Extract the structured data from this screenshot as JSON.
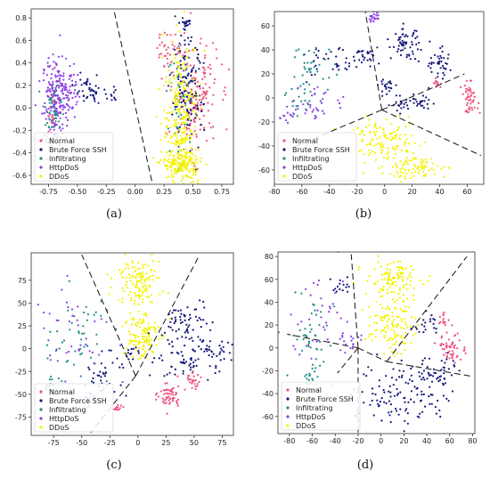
{
  "colors": {
    "Normal": "#f0527e",
    "Brute Force SSH": "#14187a",
    "Infiltrating": "#1c8c88",
    "HttpDoS": "#8e3ee6",
    "DDoS": "#f3f300"
  },
  "chart_data": [
    {
      "type": "scatter",
      "panel_label": "(a)",
      "xlim": [
        -0.9,
        0.85
      ],
      "ylim": [
        -0.68,
        0.88
      ],
      "xticks": [
        -0.75,
        -0.5,
        -0.25,
        0.0,
        0.25,
        0.5,
        0.75
      ],
      "xtick_labels": [
        "-0.75",
        "-0.50",
        "-0.25",
        "0.00",
        "0.25",
        "0.50",
        "0.75"
      ],
      "yticks": [
        -0.6,
        -0.4,
        -0.2,
        0.0,
        0.2,
        0.4,
        0.6,
        0.8
      ],
      "ytick_labels": [
        "-0.6",
        "-0.4",
        "-0.2",
        "0.0",
        "0.2",
        "0.4",
        "0.6",
        "0.8"
      ],
      "legend": {
        "position": "bottom-left",
        "entries": [
          "Normal",
          "Brute Force SSH",
          "Infiltrating",
          "HttpDoS",
          "DDoS"
        ]
      },
      "boundaries": [
        [
          [
            -0.18,
            0.85
          ],
          [
            0.15,
            -0.68
          ]
        ]
      ],
      "clusters": [
        {
          "series": "HttpDoS",
          "cx": -0.7,
          "cy": 0.05,
          "sx": 0.05,
          "sy": 0.2,
          "n": 160
        },
        {
          "series": "HttpDoS",
          "cx": -0.6,
          "cy": 0.15,
          "sx": 0.05,
          "sy": 0.12,
          "n": 90
        },
        {
          "series": "Infiltrating",
          "cx": -0.72,
          "cy": -0.1,
          "sx": 0.04,
          "sy": 0.15,
          "n": 55
        },
        {
          "series": "Normal",
          "cx": -0.72,
          "cy": -0.05,
          "sx": 0.02,
          "sy": 0.08,
          "n": 12
        },
        {
          "series": "Brute Force SSH",
          "cx": -0.4,
          "cy": 0.15,
          "sx": 0.06,
          "sy": 0.06,
          "n": 45
        },
        {
          "series": "Brute Force SSH",
          "cx": -0.18,
          "cy": 0.12,
          "sx": 0.03,
          "sy": 0.05,
          "n": 10
        },
        {
          "series": "Normal",
          "cx": 0.52,
          "cy": 0.1,
          "sx": 0.1,
          "sy": 0.25,
          "n": 160
        },
        {
          "series": "Normal",
          "cx": 0.3,
          "cy": 0.5,
          "sx": 0.06,
          "sy": 0.08,
          "n": 40
        },
        {
          "series": "Brute Force SSH",
          "cx": 0.45,
          "cy": 0.1,
          "sx": 0.07,
          "sy": 0.25,
          "n": 140
        },
        {
          "series": "Brute Force SSH",
          "cx": 0.44,
          "cy": 0.75,
          "sx": 0.02,
          "sy": 0.03,
          "n": 18
        },
        {
          "series": "Infiltrating",
          "cx": 0.38,
          "cy": 0.1,
          "sx": 0.05,
          "sy": 0.2,
          "n": 40
        },
        {
          "series": "DDoS",
          "cx": 0.4,
          "cy": -0.1,
          "sx": 0.08,
          "sy": 0.35,
          "n": 280
        },
        {
          "series": "DDoS",
          "cx": 0.4,
          "cy": -0.5,
          "sx": 0.08,
          "sy": 0.06,
          "n": 140
        }
      ]
    },
    {
      "type": "scatter",
      "panel_label": "(b)",
      "xlim": [
        -80,
        72
      ],
      "ylim": [
        -72,
        72
      ],
      "xticks": [
        -80,
        -60,
        -40,
        -20,
        0,
        20,
        40,
        60
      ],
      "xtick_labels": [
        "-80",
        "-60",
        "-40",
        "-20",
        "0",
        "20",
        "40",
        "60"
      ],
      "yticks": [
        -60,
        -40,
        -20,
        0,
        20,
        40,
        60
      ],
      "ytick_labels": [
        "-60",
        "-40",
        "-20",
        "0",
        "20",
        "40",
        "60"
      ],
      "legend": {
        "position": "bottom-left",
        "entries": [
          "Normal",
          "Brute Force SSH",
          "Infiltrating",
          "HttpDoS",
          "DDoS"
        ]
      },
      "boundaries": [
        [
          [
            -2,
            -10
          ],
          [
            -14,
            72
          ]
        ],
        [
          [
            -2,
            -10
          ],
          [
            58,
            20
          ]
        ],
        [
          [
            -2,
            -10
          ],
          [
            70,
            -48
          ]
        ],
        [
          [
            -2,
            -10
          ],
          [
            -68,
            -42
          ]
        ]
      ],
      "clusters": [
        {
          "series": "HttpDoS",
          "cx": -8,
          "cy": 67,
          "sx": 2,
          "sy": 2,
          "n": 20
        },
        {
          "series": "Brute Force SSH",
          "cx": 15,
          "cy": 45,
          "sx": 5,
          "sy": 6,
          "n": 60
        },
        {
          "series": "Brute Force SSH",
          "cx": 40,
          "cy": 28,
          "sx": 6,
          "sy": 6,
          "n": 40
        },
        {
          "series": "Brute Force SSH",
          "cx": 20,
          "cy": -5,
          "sx": 10,
          "sy": 4,
          "n": 45
        },
        {
          "series": "Brute Force SSH",
          "cx": 2,
          "cy": 10,
          "sx": 3,
          "sy": 3,
          "n": 20
        },
        {
          "series": "Brute Force SSH",
          "cx": -15,
          "cy": 35,
          "sx": 5,
          "sy": 5,
          "n": 25
        },
        {
          "series": "Brute Force SSH",
          "cx": -40,
          "cy": 28,
          "sx": 10,
          "sy": 8,
          "n": 35
        },
        {
          "series": "Normal",
          "cx": 62,
          "cy": 0,
          "sx": 3,
          "sy": 6,
          "n": 50
        },
        {
          "series": "Normal",
          "cx": 38,
          "cy": 12,
          "sx": 2,
          "sy": 2,
          "n": 12
        },
        {
          "series": "Infiltrating",
          "cx": -52,
          "cy": 25,
          "sx": 8,
          "sy": 10,
          "n": 35
        },
        {
          "series": "Infiltrating",
          "cx": -60,
          "cy": 0,
          "sx": 6,
          "sy": 8,
          "n": 20
        },
        {
          "series": "HttpDoS",
          "cx": -50,
          "cy": -5,
          "sx": 12,
          "sy": 8,
          "n": 35
        },
        {
          "series": "HttpDoS",
          "cx": -72,
          "cy": -15,
          "sx": 3,
          "sy": 3,
          "n": 10
        },
        {
          "series": "DDoS",
          "cx": 0,
          "cy": -35,
          "sx": 12,
          "sy": 8,
          "n": 120
        },
        {
          "series": "DDoS",
          "cx": 22,
          "cy": -58,
          "sx": 12,
          "sy": 5,
          "n": 90
        }
      ]
    },
    {
      "type": "scatter",
      "panel_label": "(c)",
      "xlim": [
        -95,
        85
      ],
      "ylim": [
        -95,
        105
      ],
      "xticks": [
        -75,
        -50,
        -25,
        0,
        25,
        50,
        75
      ],
      "xtick_labels": [
        "-75",
        "-50",
        "-25",
        "0",
        "25",
        "50",
        "75"
      ],
      "yticks": [
        -75,
        -50,
        -25,
        0,
        25,
        50,
        75
      ],
      "ytick_labels": [
        "-75",
        "-50",
        "-25",
        "0",
        "25",
        "50",
        "75"
      ],
      "legend": {
        "position": "bottom-left",
        "entries": [
          "Normal",
          "Brute Force SSH",
          "Infiltrating",
          "HttpDoS",
          "DDoS"
        ]
      },
      "boundaries": [
        [
          [
            -2,
            -30
          ],
          [
            -50,
            103
          ]
        ],
        [
          [
            -2,
            -30
          ],
          [
            55,
            103
          ]
        ],
        [
          [
            -2,
            -30
          ],
          [
            -42,
            -92
          ]
        ]
      ],
      "clusters": [
        {
          "series": "DDoS",
          "cx": 0,
          "cy": 75,
          "sx": 10,
          "sy": 12,
          "n": 130
        },
        {
          "series": "DDoS",
          "cx": 2,
          "cy": 15,
          "sx": 8,
          "sy": 15,
          "n": 120
        },
        {
          "series": "Brute Force SSH",
          "cx": 45,
          "cy": 25,
          "sx": 10,
          "sy": 15,
          "n": 70
        },
        {
          "series": "Brute Force SSH",
          "cx": 45,
          "cy": -15,
          "sx": 15,
          "sy": 10,
          "n": 60
        },
        {
          "series": "Brute Force SSH",
          "cx": 65,
          "cy": 0,
          "sx": 8,
          "sy": 4,
          "n": 25
        },
        {
          "series": "Brute Force SSH",
          "cx": -30,
          "cy": -30,
          "sx": 10,
          "sy": 12,
          "n": 35
        },
        {
          "series": "Brute Force SSH",
          "cx": -10,
          "cy": -5,
          "sx": 6,
          "sy": 5,
          "n": 15
        },
        {
          "series": "Normal",
          "cx": 28,
          "cy": -52,
          "sx": 5,
          "sy": 8,
          "n": 60
        },
        {
          "series": "Normal",
          "cx": 48,
          "cy": -35,
          "sx": 4,
          "sy": 4,
          "n": 25
        },
        {
          "series": "Normal",
          "cx": -18,
          "cy": -65,
          "sx": 3,
          "sy": 3,
          "n": 15
        },
        {
          "series": "Infiltrating",
          "cx": -55,
          "cy": 10,
          "sx": 15,
          "sy": 25,
          "n": 45
        },
        {
          "series": "Infiltrating",
          "cx": -75,
          "cy": -40,
          "sx": 6,
          "sy": 6,
          "n": 20
        },
        {
          "series": "HttpDoS",
          "cx": -60,
          "cy": 20,
          "sx": 20,
          "sy": 25,
          "n": 45
        },
        {
          "series": "HttpDoS",
          "cx": -42,
          "cy": -55,
          "sx": 5,
          "sy": 5,
          "n": 15
        }
      ]
    },
    {
      "type": "scatter",
      "panel_label": "(d)",
      "xlim": [
        -90,
        82
      ],
      "ylim": [
        -75,
        84
      ],
      "xticks": [
        -80,
        -60,
        -40,
        -20,
        0,
        20,
        40,
        60,
        80
      ],
      "xtick_labels": [
        "-80",
        "-60",
        "-40",
        "-20",
        "0",
        "20",
        "40",
        "60",
        "80"
      ],
      "yticks": [
        -60,
        -40,
        -20,
        0,
        20,
        40,
        60,
        80
      ],
      "ytick_labels": [
        "-60",
        "-40",
        "-20",
        "0",
        "20",
        "40",
        "60",
        "80"
      ],
      "legend": {
        "position": "bottom-left",
        "entries": [
          "Normal",
          "Brute Force SSH",
          "Infiltrating",
          "HttpDoS",
          "DDoS"
        ]
      },
      "boundaries": [
        [
          [
            -20,
            0
          ],
          [
            -26,
            82
          ]
        ],
        [
          [
            -20,
            0
          ],
          [
            -82,
            12
          ]
        ],
        [
          [
            -20,
            0
          ],
          [
            -38,
            -22
          ]
        ],
        [
          [
            -20,
            0
          ],
          [
            -20,
            -75
          ]
        ],
        [
          [
            -20,
            0
          ],
          [
            5,
            -12
          ]
        ],
        [
          [
            5,
            -12
          ],
          [
            75,
            80
          ]
        ],
        [
          [
            5,
            -12
          ],
          [
            80,
            -25
          ]
        ]
      ],
      "clusters": [
        {
          "series": "DDoS",
          "cx": 10,
          "cy": 60,
          "sx": 12,
          "sy": 8,
          "n": 110
        },
        {
          "series": "DDoS",
          "cx": 8,
          "cy": 20,
          "sx": 10,
          "sy": 12,
          "n": 120
        },
        {
          "series": "Brute Force SSH",
          "cx": 20,
          "cy": -40,
          "sx": 20,
          "sy": 15,
          "n": 120
        },
        {
          "series": "Brute Force SSH",
          "cx": 50,
          "cy": -20,
          "sx": 10,
          "sy": 6,
          "n": 40
        },
        {
          "series": "Brute Force SSH",
          "cx": 40,
          "cy": 20,
          "sx": 5,
          "sy": 5,
          "n": 20
        },
        {
          "series": "Brute Force SSH",
          "cx": -35,
          "cy": 55,
          "sx": 4,
          "sy": 6,
          "n": 15
        },
        {
          "series": "Normal",
          "cx": 62,
          "cy": 0,
          "sx": 6,
          "sy": 6,
          "n": 55
        },
        {
          "series": "Normal",
          "cx": 55,
          "cy": 25,
          "sx": 3,
          "sy": 3,
          "n": 15
        },
        {
          "series": "Infiltrating",
          "cx": -60,
          "cy": 10,
          "sx": 10,
          "sy": 20,
          "n": 45
        },
        {
          "series": "Infiltrating",
          "cx": -62,
          "cy": -30,
          "sx": 4,
          "sy": 6,
          "n": 20
        },
        {
          "series": "HttpDoS",
          "cx": -50,
          "cy": 25,
          "sx": 15,
          "sy": 25,
          "n": 40
        },
        {
          "series": "HttpDoS",
          "cx": -25,
          "cy": 5,
          "sx": 5,
          "sy": 5,
          "n": 15
        }
      ]
    }
  ]
}
